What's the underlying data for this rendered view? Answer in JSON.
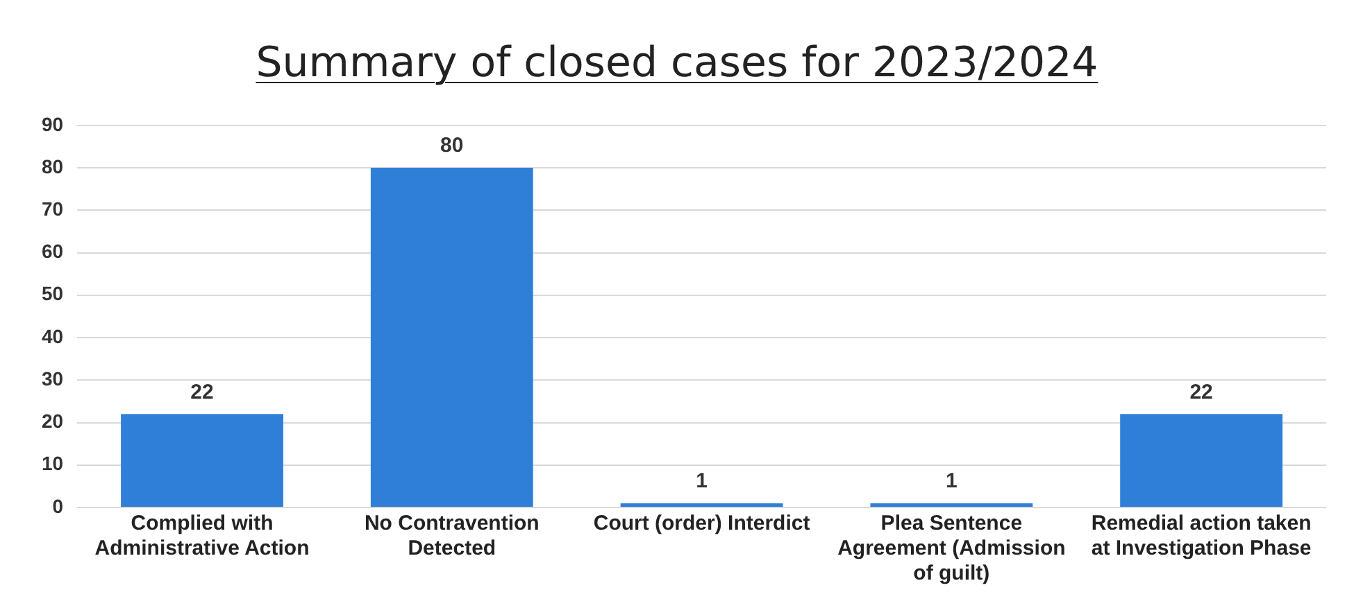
{
  "chart_data": {
    "type": "bar",
    "title": "Summary of closed cases for 2023/2024",
    "categories": [
      "Complied with Administrative Action",
      "No Contravention Detected",
      "Court (order) Interdict",
      "Plea Sentence Agreement (Admission of guilt)",
      "Remedial action taken at Investigation Phase"
    ],
    "values": [
      22,
      80,
      1,
      1,
      22
    ],
    "color": "#2f7fd8",
    "ylim": [
      0,
      90
    ],
    "yticks": [
      0,
      10,
      20,
      30,
      40,
      50,
      60,
      70,
      80,
      90
    ],
    "grid": "y",
    "data_labels": true
  }
}
